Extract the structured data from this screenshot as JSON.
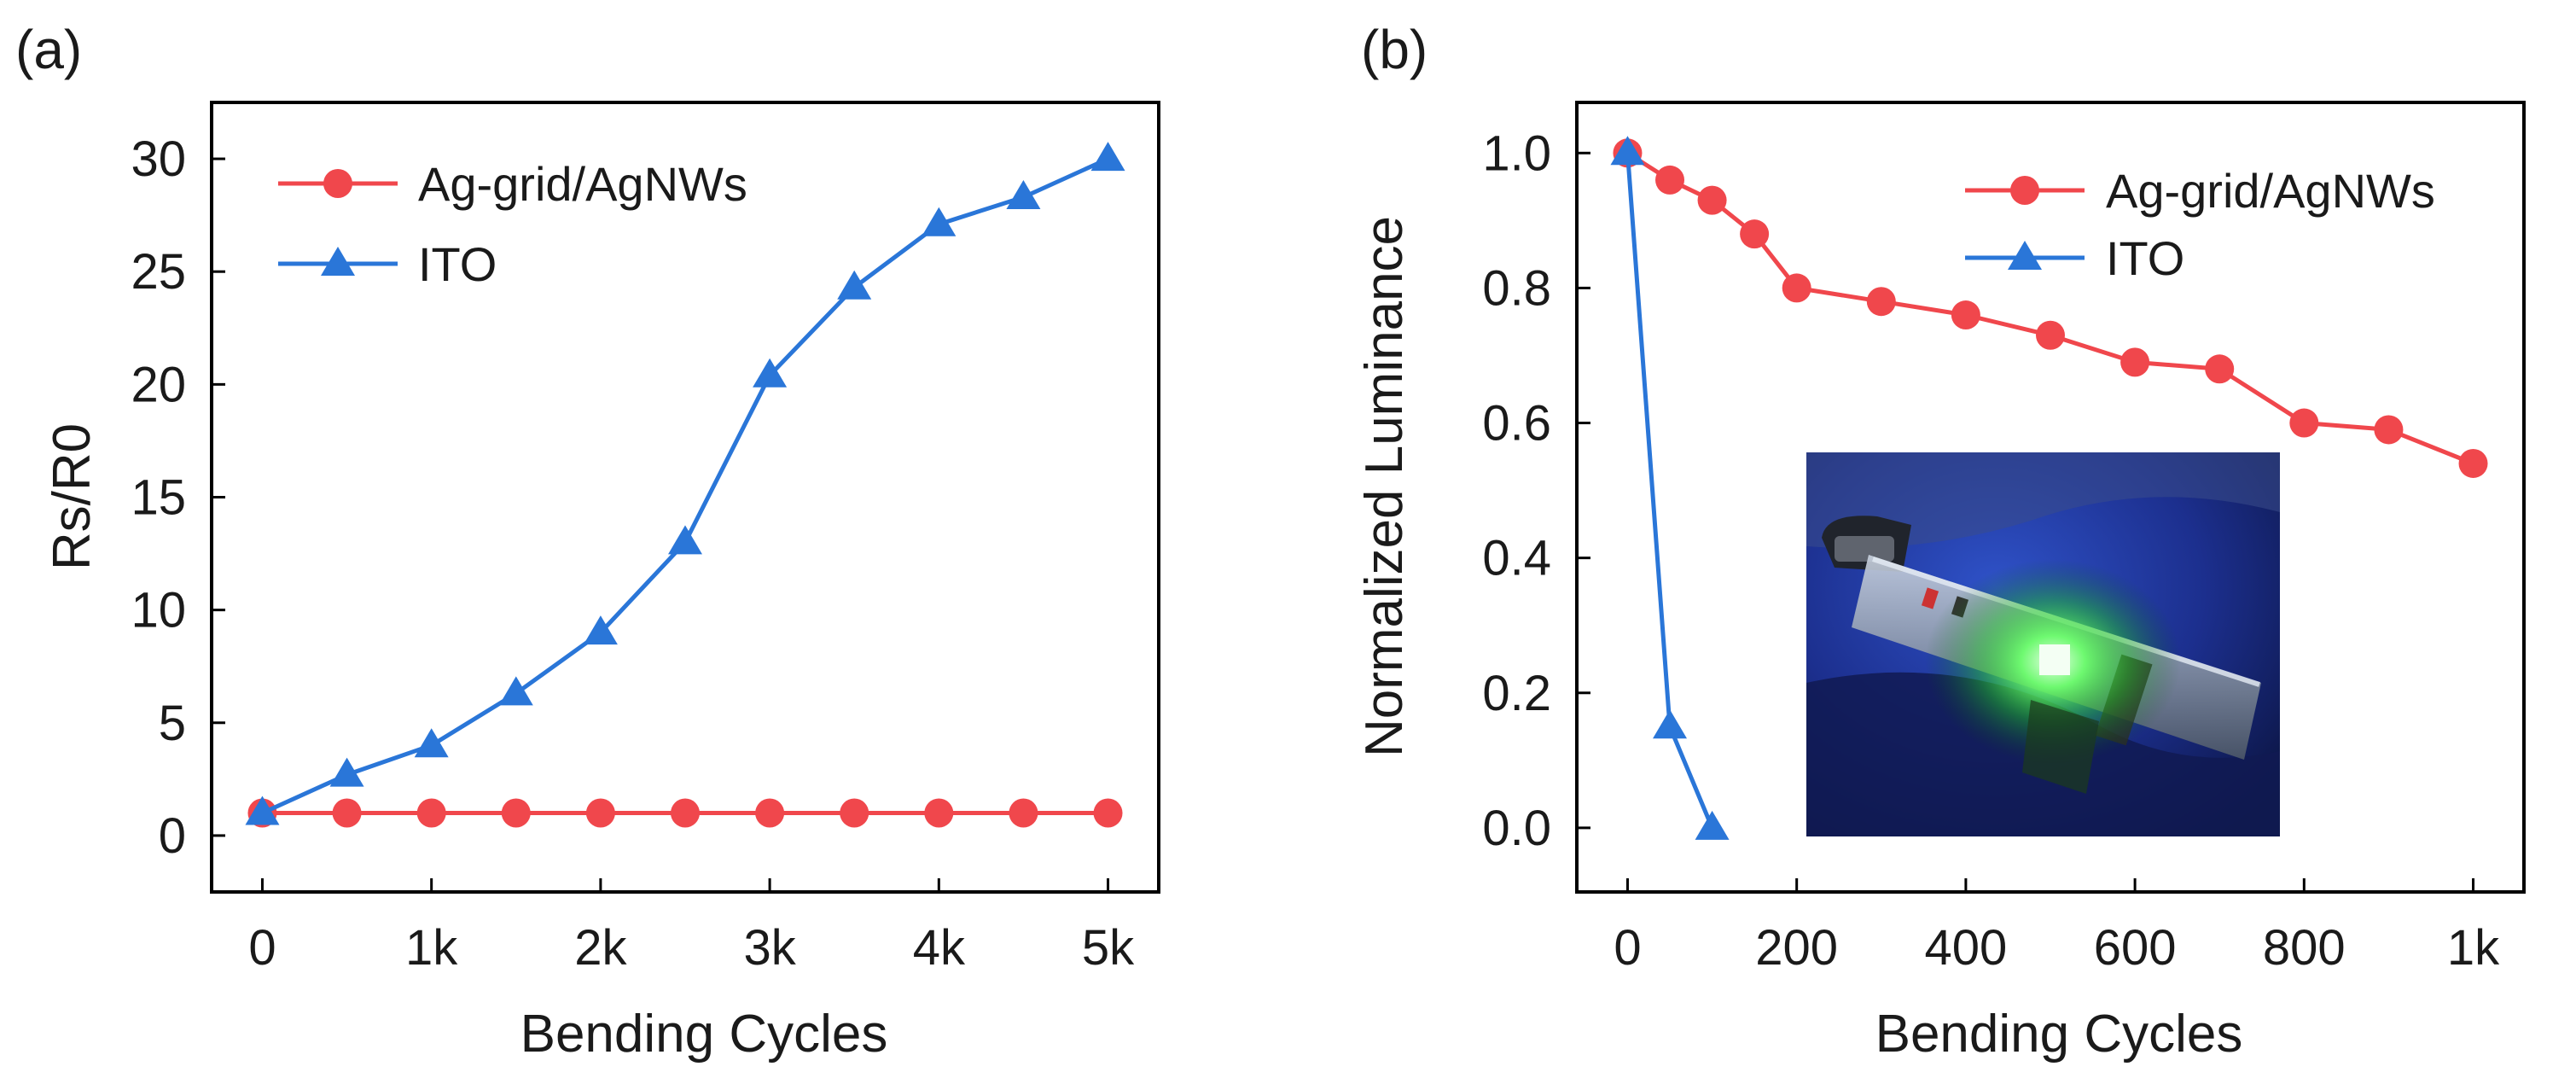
{
  "chart_data": [
    {
      "panel": "(a)",
      "type": "line",
      "xlabel": "Bending Cycles",
      "ylabel": "Rs/R0",
      "xlim": [
        -0.3,
        5.3
      ],
      "ylim": [
        -2.5,
        32.5
      ],
      "xticks": [
        0,
        1,
        2,
        3,
        4,
        5
      ],
      "xtick_labels": [
        "0",
        "1k",
        "2k",
        "3k",
        "4k",
        "5k"
      ],
      "yticks": [
        0,
        5,
        10,
        15,
        20,
        25,
        30
      ],
      "ytick_labels": [
        "0",
        "5",
        "10",
        "15",
        "20",
        "25",
        "30"
      ],
      "legend_position": "top-left",
      "series": [
        {
          "name": "Ag-grid/AgNWs",
          "marker": "circle",
          "color": "#f0474c",
          "x": [
            0,
            0.5,
            1,
            1.5,
            2,
            2.5,
            3,
            3.5,
            4,
            4.5,
            5
          ],
          "values": [
            1,
            1,
            1,
            1,
            1,
            1,
            1,
            1,
            1,
            1,
            1
          ]
        },
        {
          "name": "ITO",
          "marker": "triangle",
          "color": "#2a76d8",
          "x": [
            0,
            0.5,
            1,
            1.5,
            2,
            2.5,
            3,
            3.5,
            4,
            4.5,
            5
          ],
          "values": [
            1,
            2.7,
            4,
            6.3,
            9,
            13,
            20.4,
            24.3,
            27.1,
            28.3,
            30
          ]
        }
      ]
    },
    {
      "panel": "(b)",
      "type": "line",
      "xlabel": "Bending Cycles",
      "ylabel": "Normalized Luminance",
      "xlim": [
        -60,
        1060
      ],
      "ylim": [
        -0.095,
        1.075
      ],
      "xticks": [
        0,
        200,
        400,
        600,
        800,
        1000
      ],
      "xtick_labels": [
        "0",
        "200",
        "400",
        "600",
        "800",
        "1k"
      ],
      "yticks": [
        0,
        0.2,
        0.4,
        0.6,
        0.8,
        1.0
      ],
      "ytick_labels": [
        "0.0",
        "0.2",
        "0.4",
        "0.6",
        "0.8",
        "1.0"
      ],
      "legend_position": "top-right",
      "inset": "photo of a flexible green-emitting device held in a blue-gloved hand",
      "series": [
        {
          "name": "Ag-grid/AgNWs",
          "marker": "circle",
          "color": "#f0474c",
          "x": [
            0,
            50,
            100,
            150,
            200,
            300,
            400,
            500,
            600,
            700,
            800,
            900,
            1000
          ],
          "values": [
            1.0,
            0.96,
            0.93,
            0.88,
            0.8,
            0.78,
            0.76,
            0.73,
            0.69,
            0.68,
            0.6,
            0.59,
            0.54
          ]
        },
        {
          "name": "ITO",
          "marker": "triangle",
          "color": "#2a76d8",
          "x": [
            0,
            50,
            100
          ],
          "values": [
            1.0,
            0.15,
            0.0
          ]
        }
      ]
    }
  ]
}
